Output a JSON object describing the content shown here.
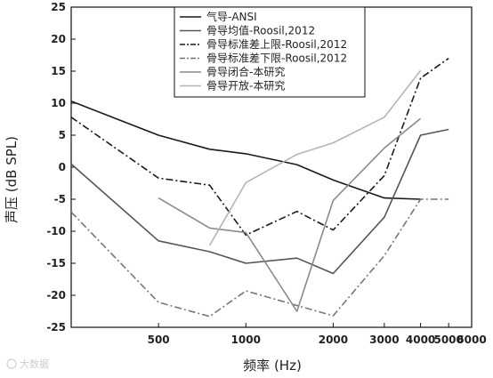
{
  "chart_data": {
    "type": "line",
    "xlabel": "频率 (Hz)",
    "ylabel": "声压 (dB SPL)",
    "x_scale": "log",
    "xlim": [
      250,
      6000
    ],
    "ylim": [
      -25,
      25
    ],
    "x_ticks": [
      500,
      1000,
      2000,
      3000,
      4000,
      5000,
      6000
    ],
    "y_ticks": [
      25,
      20,
      15,
      10,
      5,
      0,
      -5,
      -10,
      -15,
      -20,
      -25
    ],
    "grid": false,
    "legend_position": "top-right",
    "series": [
      {
        "name": "气导-ANSI",
        "color": "#1a1a1a",
        "dash": "solid",
        "x": [
          250,
          500,
          750,
          1000,
          1500,
          2000,
          3000,
          4000
        ],
        "y": [
          10.3,
          5.0,
          2.8,
          2.1,
          0.4,
          -2.0,
          -4.8,
          -5.0
        ]
      },
      {
        "name": "骨导均值-Roosil,2012",
        "color": "#555555",
        "dash": "solid",
        "x": [
          250,
          500,
          750,
          1000,
          1500,
          2000,
          3000,
          4000,
          5000
        ],
        "y": [
          0.5,
          -11.5,
          -13.2,
          -15.0,
          -14.2,
          -16.6,
          -7.8,
          5.0,
          5.9
        ]
      },
      {
        "name": "骨导标准差上限-Roosil,2012",
        "color": "#1a1a1a",
        "dash": "dashdot",
        "x": [
          250,
          500,
          750,
          1000,
          1500,
          2000,
          3000,
          4000,
          5000
        ],
        "y": [
          7.8,
          -1.7,
          -2.8,
          -10.6,
          -6.9,
          -9.8,
          -1.3,
          13.9,
          17.0
        ]
      },
      {
        "name": "骨导标准差下限-Roosil,2012",
        "color": "#777777",
        "dash": "dashdot",
        "x": [
          250,
          500,
          750,
          1000,
          1500,
          2000,
          3000,
          4000,
          5000
        ],
        "y": [
          -7.0,
          -21.1,
          -23.3,
          -19.3,
          -21.6,
          -23.2,
          -13.8,
          -5.0,
          -5.0
        ]
      },
      {
        "name": "骨导闭合-本研究",
        "color": "#8a8a8a",
        "dash": "solid",
        "x": [
          500,
          750,
          1000,
          1500,
          2000,
          3000,
          4000
        ],
        "y": [
          -4.8,
          -9.5,
          -10.2,
          -22.5,
          -5.2,
          3.0,
          7.6
        ]
      },
      {
        "name": "骨导开放-本研究",
        "color": "#b5b5b5",
        "dash": "solid",
        "x": [
          750,
          1000,
          1500,
          2000,
          3000,
          4000
        ],
        "y": [
          -12.2,
          -2.4,
          2.0,
          3.8,
          7.8,
          15.1
        ]
      }
    ]
  },
  "watermark": {
    "text": "大数据"
  }
}
